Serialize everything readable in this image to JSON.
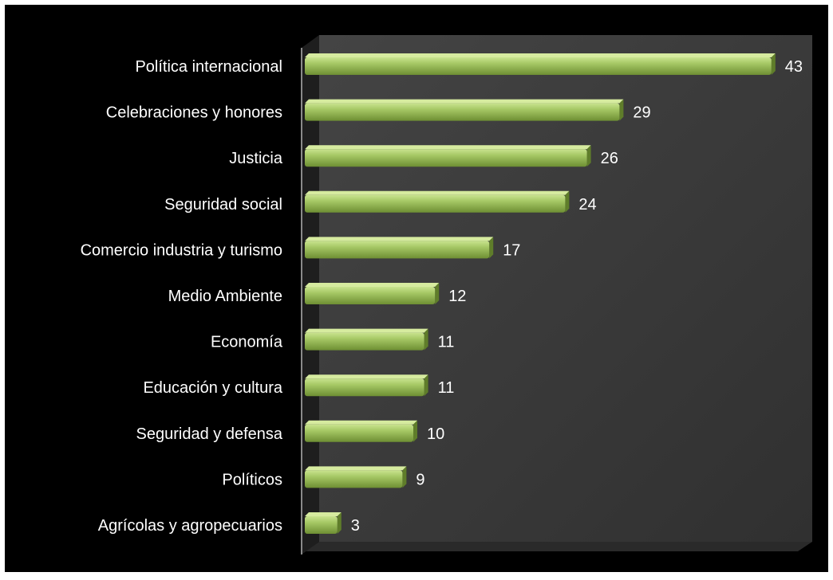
{
  "chart_data": {
    "type": "bar",
    "orientation": "horizontal",
    "title": "",
    "xlabel": "",
    "ylabel": "",
    "categories": [
      "Política internacional",
      "Celebraciones y honores",
      "Justicia",
      "Seguridad social",
      "Comercio industria y turismo",
      "Medio Ambiente",
      "Economía",
      "Educación y cultura",
      "Seguridad y defensa",
      "Políticos",
      "Agrícolas y agropecuarios"
    ],
    "values": [
      43,
      29,
      26,
      24,
      17,
      12,
      11,
      11,
      10,
      9,
      3
    ],
    "xlim": [
      0,
      45
    ],
    "grid": false,
    "legend": "none",
    "colors": {
      "background": "#000000",
      "plot_area": "#3a3a3a",
      "bar_light": "#b5d67a",
      "bar_mid": "#8fb24f",
      "bar_dark": "#5f7d2a",
      "text": "#ffffff"
    }
  }
}
